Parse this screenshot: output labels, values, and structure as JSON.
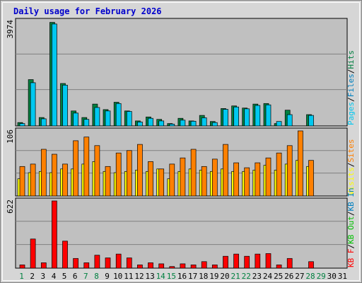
{
  "title": "Daily usage for February 2026",
  "colors": {
    "hits": "#008040",
    "files": "#00c8f0",
    "sites": "#ff8000",
    "visits": "#ffff00",
    "kbin": "#0080c0",
    "kbout": "#00c000",
    "kbf": "#ff0000",
    "weekend": "#008040",
    "title": "#0000cc",
    "plot_bg": "#c0c0c0",
    "page_bg": "#d6d6d6"
  },
  "chart_data": [
    {
      "type": "bar",
      "panel": "hits-files",
      "ylabel_max": "3974",
      "ymax": 3974,
      "right_label": [
        {
          "text": "Pages",
          "color": "#00c8f0"
        },
        {
          "text": "/",
          "color": "#000000"
        },
        {
          "text": "Files",
          "color": "#0080c0"
        },
        {
          "text": "/",
          "color": "#000000"
        },
        {
          "text": "Hits",
          "color": "#008040"
        }
      ],
      "series": [
        {
          "name": "Hits",
          "color": "#008040",
          "values": [
            130,
            1760,
            320,
            3930,
            1610,
            570,
            320,
            830,
            620,
            900,
            570,
            190,
            340,
            250,
            90,
            290,
            190,
            400,
            170,
            660,
            760,
            680,
            830,
            850,
            90,
            600,
            0,
            430,
            0,
            0,
            0
          ]
        },
        {
          "name": "Files",
          "color": "#00c8f0",
          "values": [
            90,
            1640,
            270,
            3870,
            1550,
            490,
            250,
            700,
            570,
            850,
            550,
            150,
            290,
            190,
            70,
            220,
            180,
            310,
            130,
            630,
            720,
            650,
            780,
            800,
            170,
            430,
            0,
            400,
            0,
            0,
            0
          ]
        }
      ]
    },
    {
      "type": "bar",
      "panel": "visits-sites",
      "ylabel_max": "106",
      "ymax": 106,
      "right_label": [
        {
          "text": "Visits",
          "color": "#ffff00"
        },
        {
          "text": "/",
          "color": "#000000"
        },
        {
          "text": "Sites",
          "color": "#ff8000"
        }
      ],
      "series": [
        {
          "name": "Visits",
          "color": "#ffff00",
          "values": [
            28,
            38,
            40,
            38,
            44,
            44,
            52,
            56,
            40,
            38,
            40,
            42,
            40,
            44,
            28,
            40,
            44,
            42,
            40,
            44,
            40,
            40,
            42,
            50,
            42,
            52,
            58,
            48,
            0,
            0,
            0
          ]
        },
        {
          "name": "Sites",
          "color": "#ff8000",
          "values": [
            48,
            52,
            76,
            68,
            52,
            90,
            96,
            82,
            48,
            70,
            74,
            84,
            56,
            44,
            52,
            62,
            76,
            48,
            60,
            84,
            54,
            46,
            54,
            62,
            70,
            82,
            106,
            58,
            0,
            0,
            0
          ]
        }
      ]
    },
    {
      "type": "bar",
      "panel": "kbytes",
      "ylabel_max": "622",
      "ymax": 622,
      "right_label": [
        {
          "text": "KB F",
          "color": "#ff0000"
        },
        {
          "text": "/",
          "color": "#000000"
        },
        {
          "text": "KB Out",
          "color": "#00c000"
        },
        {
          "text": "/",
          "color": "#000000"
        },
        {
          "text": "KB In",
          "color": "#0080c0"
        }
      ],
      "series": [
        {
          "name": "KB F",
          "color": "#ff0000",
          "values": [
            30,
            270,
            50,
            622,
            250,
            90,
            50,
            120,
            95,
            130,
            95,
            30,
            50,
            40,
            15,
            40,
            30,
            60,
            30,
            110,
            130,
            110,
            130,
            135,
            30,
            90,
            0,
            60,
            0,
            0,
            0
          ]
        }
      ]
    }
  ],
  "x_axis": {
    "days": [
      "1",
      "2",
      "3",
      "4",
      "5",
      "6",
      "7",
      "8",
      "9",
      "10",
      "11",
      "12",
      "13",
      "14",
      "15",
      "16",
      "17",
      "18",
      "19",
      "20",
      "21",
      "22",
      "23",
      "24",
      "25",
      "26",
      "27",
      "28",
      "29",
      "30",
      "31"
    ],
    "weekend_days": [
      1,
      7,
      8,
      14,
      15,
      21,
      22,
      28,
      29
    ]
  }
}
